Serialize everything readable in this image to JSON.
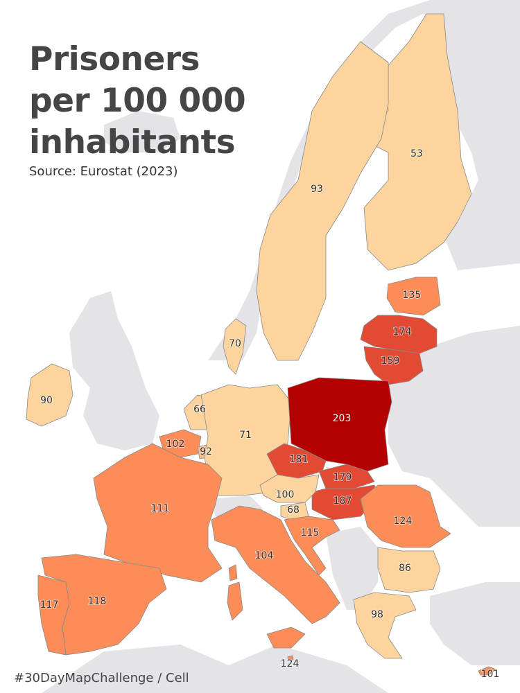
{
  "title_lines": [
    "Prisoners",
    "per 100 000",
    "inhabitants"
  ],
  "source": "Source: Eurostat (2023)",
  "footer": "#30DayMapChallenge / Cell",
  "colors": {
    "background_land": "#e4e4e8",
    "sea": "#ffffff",
    "scale": [
      "#fdd49e",
      "#fdbb84",
      "#fc8d59",
      "#e34a33",
      "#b30000"
    ]
  },
  "chart_data": {
    "type": "choropleth",
    "title": "Prisoners per 100 000 inhabitants",
    "source": "Eurostat (2023)",
    "regions": [
      {
        "id": "finland",
        "value": 53
      },
      {
        "id": "sweden",
        "value": 93
      },
      {
        "id": "estonia",
        "value": 135
      },
      {
        "id": "latvia",
        "value": 174
      },
      {
        "id": "lithuania",
        "value": 159
      },
      {
        "id": "denmark",
        "value": 70
      },
      {
        "id": "ireland",
        "value": 90
      },
      {
        "id": "netherlands",
        "value": 66
      },
      {
        "id": "belgium",
        "value": 102
      },
      {
        "id": "luxembourg",
        "value": 92
      },
      {
        "id": "germany",
        "value": 71
      },
      {
        "id": "poland",
        "value": 203
      },
      {
        "id": "czechia",
        "value": 181
      },
      {
        "id": "slovakia",
        "value": 179
      },
      {
        "id": "hungary",
        "value": 187
      },
      {
        "id": "austria",
        "value": 100
      },
      {
        "id": "slovenia",
        "value": 68
      },
      {
        "id": "croatia",
        "value": 115
      },
      {
        "id": "romania",
        "value": 124
      },
      {
        "id": "bulgaria",
        "value": 86
      },
      {
        "id": "greece",
        "value": 98
      },
      {
        "id": "france",
        "value": 111
      },
      {
        "id": "italy",
        "value": 104
      },
      {
        "id": "spain",
        "value": 118
      },
      {
        "id": "portugal",
        "value": 117
      },
      {
        "id": "malta",
        "value": 124
      },
      {
        "id": "cyprus",
        "value": 101
      }
    ]
  }
}
